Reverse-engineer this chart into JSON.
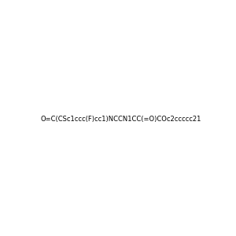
{
  "smiles": "O=C(CSc1ccc(F)cc1)NCCN1CC(=O)COc2ccccc21",
  "img_size": [
    300,
    300
  ],
  "background_color": "#e8e8e8",
  "atom_colors": {
    "F": "#ff00ff",
    "S": "#ccaa00",
    "O": "#ff0000",
    "N": "#0000ff"
  }
}
